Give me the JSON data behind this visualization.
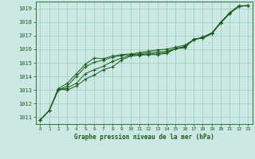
{
  "xlabel": "Graphe pression niveau de la mer (hPa)",
  "background_color": "#cce8e4",
  "grid_color": "#99ccbb",
  "line_color": "#1a5c1a",
  "marker_color": "#1a5c1a",
  "xlim": [
    -0.5,
    23.5
  ],
  "ylim": [
    1010.5,
    1019.5
  ],
  "xticks": [
    0,
    1,
    2,
    3,
    4,
    5,
    6,
    7,
    8,
    9,
    10,
    11,
    12,
    13,
    14,
    15,
    16,
    17,
    18,
    19,
    20,
    21,
    22,
    23
  ],
  "yticks": [
    1011,
    1012,
    1013,
    1014,
    1015,
    1016,
    1017,
    1018,
    1019
  ],
  "series": [
    [
      1010.8,
      1011.5,
      1013.1,
      1013.0,
      1013.3,
      1013.8,
      1014.1,
      1014.5,
      1014.7,
      1015.2,
      1015.5,
      1015.55,
      1015.6,
      1015.6,
      1015.7,
      1016.05,
      1016.1,
      1016.75,
      1016.8,
      1017.15,
      1017.95,
      1018.65,
      1019.15,
      1019.2
    ],
    [
      1010.8,
      1011.5,
      1013.0,
      1013.15,
      1013.5,
      1014.2,
      1014.5,
      1014.75,
      1015.1,
      1015.35,
      1015.55,
      1015.6,
      1015.65,
      1015.7,
      1015.75,
      1016.05,
      1016.15,
      1016.7,
      1016.85,
      1017.15,
      1017.95,
      1018.65,
      1019.15,
      1019.2
    ],
    [
      1010.8,
      1011.5,
      1013.0,
      1013.3,
      1014.0,
      1014.7,
      1015.05,
      1015.2,
      1015.4,
      1015.55,
      1015.6,
      1015.65,
      1015.75,
      1015.8,
      1015.85,
      1016.05,
      1016.2,
      1016.7,
      1016.85,
      1017.15,
      1017.95,
      1018.65,
      1019.15,
      1019.2
    ],
    [
      1010.8,
      1011.5,
      1013.1,
      1013.5,
      1014.2,
      1014.9,
      1015.35,
      1015.3,
      1015.5,
      1015.6,
      1015.65,
      1015.75,
      1015.85,
      1015.95,
      1016.0,
      1016.15,
      1016.3,
      1016.7,
      1016.9,
      1017.2,
      1018.0,
      1018.7,
      1019.2,
      1019.2
    ]
  ]
}
